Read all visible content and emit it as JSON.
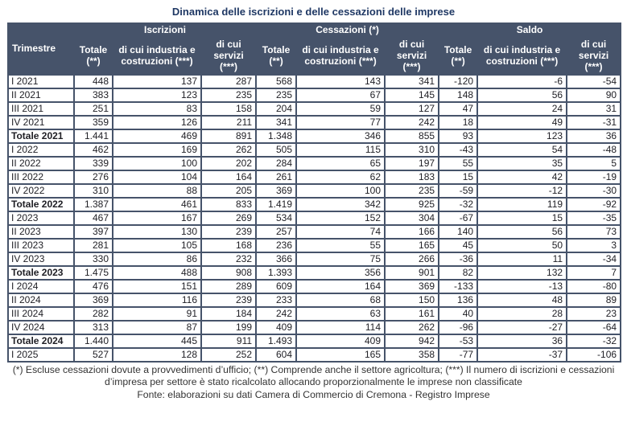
{
  "page": {
    "title": "Dinamica delle iscrizioni e delle cessazioni delle imprese"
  },
  "colors": {
    "header_bg": "#46536A",
    "header_text": "#FFFFFF",
    "border": "#46536A",
    "title_text": "#1F3864",
    "cell_text": "#1E1E24",
    "note_text": "#333333"
  },
  "table": {
    "corner_header": "Trimestre",
    "groups": [
      {
        "label": "Iscrizioni"
      },
      {
        "label": "Cessazioni (*)"
      },
      {
        "label": "Saldo"
      }
    ],
    "sub_headers": [
      "Totale (**)",
      "di cui industria e costruzioni (***)",
      "di cui servizi (***)"
    ],
    "rows": [
      {
        "label": "I 2021",
        "is_total": false,
        "values": [
          "448",
          "137",
          "287",
          "568",
          "143",
          "341",
          "-120",
          "-6",
          "-54"
        ]
      },
      {
        "label": "II 2021",
        "is_total": false,
        "values": [
          "383",
          "123",
          "235",
          "235",
          "67",
          "145",
          "148",
          "56",
          "90"
        ]
      },
      {
        "label": "III 2021",
        "is_total": false,
        "values": [
          "251",
          "83",
          "158",
          "204",
          "59",
          "127",
          "47",
          "24",
          "31"
        ]
      },
      {
        "label": "IV 2021",
        "is_total": false,
        "values": [
          "359",
          "126",
          "211",
          "341",
          "77",
          "242",
          "18",
          "49",
          "-31"
        ]
      },
      {
        "label": "Totale 2021",
        "is_total": true,
        "values": [
          "1.441",
          "469",
          "891",
          "1.348",
          "346",
          "855",
          "93",
          "123",
          "36"
        ]
      },
      {
        "label": "I 2022",
        "is_total": false,
        "values": [
          "462",
          "169",
          "262",
          "505",
          "115",
          "310",
          "-43",
          "54",
          "-48"
        ]
      },
      {
        "label": "II 2022",
        "is_total": false,
        "values": [
          "339",
          "100",
          "202",
          "284",
          "65",
          "197",
          "55",
          "35",
          "5"
        ]
      },
      {
        "label": "III 2022",
        "is_total": false,
        "values": [
          "276",
          "104",
          "164",
          "261",
          "62",
          "183",
          "15",
          "42",
          "-19"
        ]
      },
      {
        "label": "IV 2022",
        "is_total": false,
        "values": [
          "310",
          "88",
          "205",
          "369",
          "100",
          "235",
          "-59",
          "-12",
          "-30"
        ]
      },
      {
        "label": "Totale 2022",
        "is_total": true,
        "values": [
          "1.387",
          "461",
          "833",
          "1.419",
          "342",
          "925",
          "-32",
          "119",
          "-92"
        ]
      },
      {
        "label": "I 2023",
        "is_total": false,
        "values": [
          "467",
          "167",
          "269",
          "534",
          "152",
          "304",
          "-67",
          "15",
          "-35"
        ]
      },
      {
        "label": "II 2023",
        "is_total": false,
        "values": [
          "397",
          "130",
          "239",
          "257",
          "74",
          "166",
          "140",
          "56",
          "73"
        ]
      },
      {
        "label": "III 2023",
        "is_total": false,
        "values": [
          "281",
          "105",
          "168",
          "236",
          "55",
          "165",
          "45",
          "50",
          "3"
        ]
      },
      {
        "label": "IV 2023",
        "is_total": false,
        "values": [
          "330",
          "86",
          "232",
          "366",
          "75",
          "266",
          "-36",
          "11",
          "-34"
        ]
      },
      {
        "label": "Totale 2023",
        "is_total": true,
        "values": [
          "1.475",
          "488",
          "908",
          "1.393",
          "356",
          "901",
          "82",
          "132",
          "7"
        ]
      },
      {
        "label": "I 2024",
        "is_total": false,
        "values": [
          "476",
          "151",
          "289",
          "609",
          "164",
          "369",
          "-133",
          "-13",
          "-80"
        ]
      },
      {
        "label": "II 2024",
        "is_total": false,
        "values": [
          "369",
          "116",
          "239",
          "233",
          "68",
          "150",
          "136",
          "48",
          "89"
        ]
      },
      {
        "label": "III 2024",
        "is_total": false,
        "values": [
          "282",
          "91",
          "184",
          "242",
          "63",
          "161",
          "40",
          "28",
          "23"
        ]
      },
      {
        "label": "IV 2024",
        "is_total": false,
        "values": [
          "313",
          "87",
          "199",
          "409",
          "114",
          "262",
          "-96",
          "-27",
          "-64"
        ]
      },
      {
        "label": "Totale 2024",
        "is_total": true,
        "values": [
          "1.440",
          "445",
          "911",
          "1.493",
          "409",
          "942",
          "-53",
          "36",
          "-32"
        ]
      },
      {
        "label": "I 2025",
        "is_total": false,
        "values": [
          "527",
          "128",
          "252",
          "604",
          "165",
          "358",
          "-77",
          "-37",
          "-106"
        ]
      }
    ]
  },
  "footnotes": {
    "notes": "(*) Escluse cessazioni dovute a provvedimenti d’ufficio; (**) Comprende anche il settore agricoltura; (***) Il numero di iscrizioni e cessazioni d’impresa per settore è stato ricalcolato allocando proporzionalmente le imprese non classificate",
    "source": "Fonte: elaborazioni su dati Camera di Commercio di Cremona - Registro Imprese"
  }
}
